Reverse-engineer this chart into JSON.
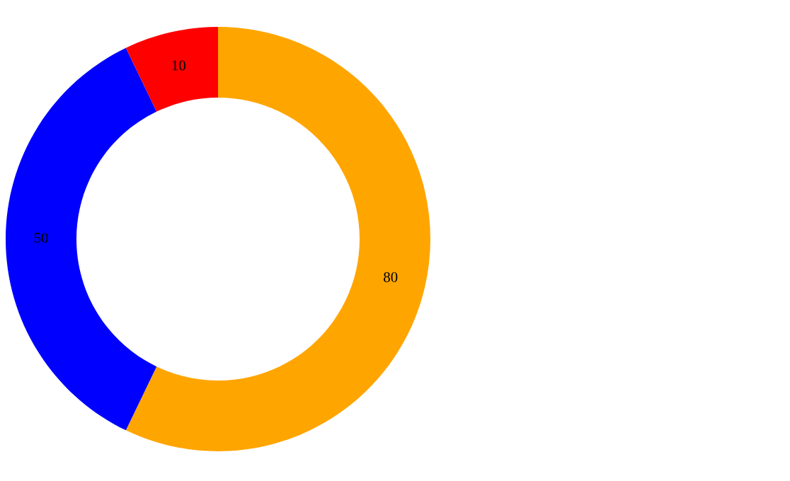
{
  "chart_data": {
    "type": "donut",
    "categories": [
      null,
      null,
      null
    ],
    "values": [
      80,
      50,
      10
    ],
    "colors": [
      "#ffa500",
      "#0000ff",
      "#ff0000"
    ],
    "data_labels": true
  }
}
